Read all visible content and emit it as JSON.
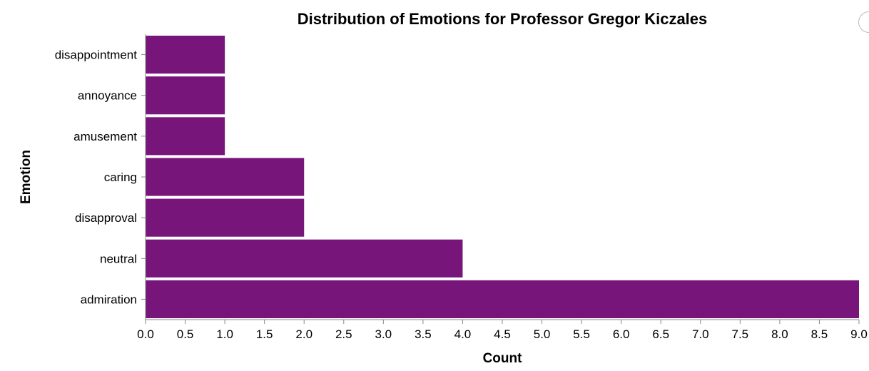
{
  "chart_data": {
    "type": "bar",
    "orientation": "horizontal",
    "title": "Distribution of Emotions for Professor Gregor Kiczales",
    "xlabel": "Count",
    "ylabel": "Emotion",
    "categories": [
      "disappointment",
      "annoyance",
      "amusement",
      "caring",
      "disapproval",
      "neutral",
      "admiration"
    ],
    "values": [
      1,
      1,
      1,
      2,
      2,
      4,
      9
    ],
    "xlim": [
      0,
      9
    ],
    "xticks": [
      "0.0",
      "0.5",
      "1.0",
      "1.5",
      "2.0",
      "2.5",
      "3.0",
      "3.5",
      "4.0",
      "4.5",
      "5.0",
      "5.5",
      "6.0",
      "6.5",
      "7.0",
      "7.5",
      "8.0",
      "8.5",
      "9.0"
    ],
    "grid": false,
    "bar_color": "#77157a"
  }
}
